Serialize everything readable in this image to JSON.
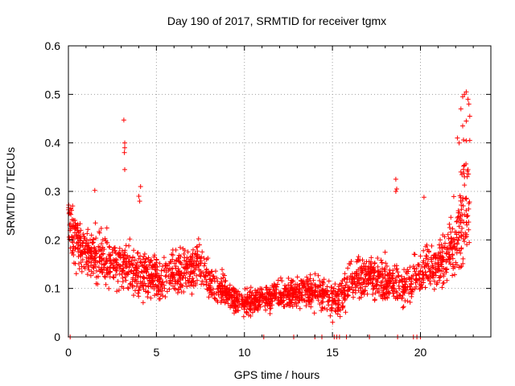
{
  "chart_data": {
    "type": "scatter",
    "title": "Day 190 of 2017, SRMTID for receiver tgmx",
    "xlabel": "GPS time / hours",
    "ylabel": "SRMTID / TECUs",
    "xlim": [
      0,
      24
    ],
    "ylim": [
      0,
      0.6
    ],
    "xticks": [
      0,
      5,
      10,
      15,
      20
    ],
    "xtick_labels": [
      "0",
      "5",
      "10",
      "15",
      "20"
    ],
    "yticks": [
      0,
      0.1,
      0.2,
      0.3,
      0.4,
      0.5,
      0.6
    ],
    "ytick_labels": [
      "0",
      "0.1",
      "0.2",
      "0.3",
      "0.4",
      "0.5",
      "0.6"
    ],
    "grid": true,
    "marker": "+",
    "color": "#ff0000",
    "series": [
      {
        "name": "SRMTID",
        "profile": {
          "x": [
            0.0,
            0.5,
            1.0,
            2.0,
            3.0,
            4.0,
            5.0,
            6.0,
            7.0,
            7.5,
            8.0,
            9.0,
            9.5,
            10.0,
            11.0,
            12.0,
            13.0,
            14.0,
            15.0,
            15.5,
            16.0,
            17.0,
            18.0,
            19.0,
            19.5,
            20.0,
            21.0,
            21.5,
            22.0,
            22.5,
            22.8
          ],
          "y": [
            0.24,
            0.2,
            0.18,
            0.16,
            0.15,
            0.13,
            0.12,
            0.13,
            0.14,
            0.15,
            0.11,
            0.09,
            0.075,
            0.07,
            0.08,
            0.085,
            0.09,
            0.095,
            0.08,
            0.085,
            0.11,
            0.13,
            0.12,
            0.1,
            0.11,
            0.14,
            0.15,
            0.16,
            0.2,
            0.26,
            0.28
          ],
          "spread": [
            0.045,
            0.045,
            0.04,
            0.04,
            0.04,
            0.035,
            0.035,
            0.035,
            0.035,
            0.035,
            0.03,
            0.025,
            0.02,
            0.02,
            0.02,
            0.022,
            0.025,
            0.025,
            0.03,
            0.03,
            0.035,
            0.035,
            0.035,
            0.03,
            0.03,
            0.035,
            0.04,
            0.045,
            0.06,
            0.1,
            0.1
          ]
        },
        "outliers": [
          {
            "x": 3.15,
            "y": 0.447
          },
          {
            "x": 3.2,
            "y": 0.4
          },
          {
            "x": 3.2,
            "y": 0.39
          },
          {
            "x": 3.18,
            "y": 0.38
          },
          {
            "x": 3.2,
            "y": 0.345
          },
          {
            "x": 4.1,
            "y": 0.31
          },
          {
            "x": 4.0,
            "y": 0.29
          },
          {
            "x": 4.05,
            "y": 0.28
          },
          {
            "x": 1.5,
            "y": 0.302
          },
          {
            "x": 18.6,
            "y": 0.325
          },
          {
            "x": 18.65,
            "y": 0.305
          },
          {
            "x": 18.6,
            "y": 0.3
          },
          {
            "x": 20.2,
            "y": 0.288
          },
          {
            "x": 22.1,
            "y": 0.41
          },
          {
            "x": 22.2,
            "y": 0.4
          },
          {
            "x": 22.5,
            "y": 0.5
          },
          {
            "x": 22.6,
            "y": 0.505
          },
          {
            "x": 22.4,
            "y": 0.495
          },
          {
            "x": 22.7,
            "y": 0.49
          },
          {
            "x": 22.75,
            "y": 0.48
          },
          {
            "x": 22.3,
            "y": 0.47
          },
          {
            "x": 22.8,
            "y": 0.455
          },
          {
            "x": 22.6,
            "y": 0.445
          },
          {
            "x": 22.4,
            "y": 0.435
          },
          {
            "x": 22.8,
            "y": 0.405
          },
          {
            "x": 22.3,
            "y": 0.34
          },
          {
            "x": 22.5,
            "y": 0.33
          },
          {
            "x": 22.7,
            "y": 0.345
          }
        ],
        "zero_points_x": [
          0.1,
          11.1,
          12.8,
          14.0,
          14.4,
          15.1,
          15.25,
          15.4,
          15.8,
          17.1,
          18.7,
          19.6,
          19.8,
          20.0
        ]
      }
    ]
  }
}
